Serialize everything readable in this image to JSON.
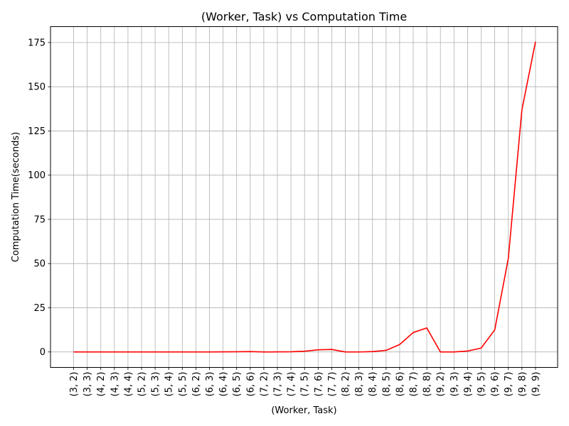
{
  "chart_data": {
    "type": "line",
    "title": "(Worker, Task) vs Computation Time",
    "xlabel": "(Worker, Task)",
    "ylabel": "Computation Time(seconds)",
    "ylim": [
      -8.75,
      184
    ],
    "yticks": [
      0,
      25,
      50,
      75,
      100,
      125,
      150,
      175
    ],
    "grid": true,
    "categories": [
      "(3, 2)",
      "(3, 3)",
      "(4, 2)",
      "(4, 3)",
      "(4, 4)",
      "(5, 2)",
      "(5, 3)",
      "(5, 4)",
      "(5, 5)",
      "(6, 2)",
      "(6, 3)",
      "(6, 4)",
      "(6, 5)",
      "(6, 6)",
      "(7, 2)",
      "(7, 3)",
      "(7, 4)",
      "(7, 5)",
      "(7, 6)",
      "(7, 7)",
      "(8, 2)",
      "(8, 3)",
      "(8, 4)",
      "(8, 5)",
      "(8, 6)",
      "(8, 7)",
      "(8, 8)",
      "(9, 2)",
      "(9, 3)",
      "(9, 4)",
      "(9, 5)",
      "(9, 6)",
      "(9, 7)",
      "(9, 8)",
      "(9, 9)"
    ],
    "series": [
      {
        "color": "#ff0000",
        "values": [
          0,
          0,
          0,
          0,
          0,
          0,
          0,
          0,
          0,
          0,
          0,
          0.05,
          0.1,
          0.2,
          0,
          0.05,
          0.1,
          0.4,
          1.2,
          1.4,
          0,
          0,
          0.2,
          0.9,
          4.2,
          11,
          13.6,
          0,
          0,
          0.5,
          2.2,
          12.5,
          53,
          137,
          175.5
        ]
      }
    ]
  }
}
